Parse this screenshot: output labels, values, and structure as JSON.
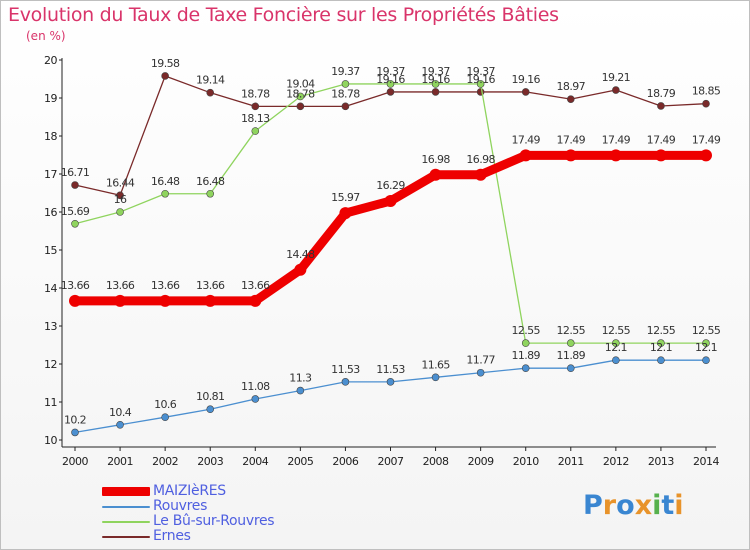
{
  "title": "Evolution du Taux de Taxe Foncière sur les Propriétés Bâties",
  "unit_label": "(en %)",
  "logo": {
    "letters": [
      "P",
      "r",
      "o",
      "x",
      "i",
      "t",
      "i"
    ],
    "colors": [
      "#3a86d1",
      "#e8932a",
      "#3a86d1",
      "#e8932a",
      "#57b14d",
      "#3a86d1",
      "#e8932a"
    ]
  },
  "chart_data": {
    "type": "line",
    "title": "Evolution du Taux de Taxe Foncière sur les Propriétés Bâties",
    "ylabel": "(en %)",
    "xlabel": "",
    "x": [
      "2000",
      "2001",
      "2002",
      "2003",
      "2004",
      "2005",
      "2006",
      "2007",
      "2008",
      "2009",
      "2010",
      "2011",
      "2012",
      "2013",
      "2014"
    ],
    "ylim": [
      10,
      20
    ],
    "yticks": [
      "10",
      "11",
      "12",
      "13",
      "14",
      "15",
      "16",
      "17",
      "18",
      "19",
      "20"
    ],
    "grid": false,
    "legend_position": "bottom-left",
    "series": [
      {
        "name": "MAIZIèRES",
        "color": "#ee0000",
        "emphasis": true,
        "values": [
          13.66,
          13.66,
          13.66,
          13.66,
          13.66,
          14.48,
          15.97,
          16.29,
          16.98,
          16.98,
          17.49,
          17.49,
          17.49,
          17.49,
          17.49
        ],
        "labels": [
          "13.66",
          "13.66",
          "13.66",
          "13.66",
          "13.66",
          "14.48",
          "15.97",
          "16.29",
          "16.98",
          "16.98",
          "17.49",
          "17.49",
          "17.49",
          "17.49",
          "17.49"
        ]
      },
      {
        "name": "Rouvres",
        "color": "#4b8fd0",
        "values": [
          10.2,
          10.4,
          10.6,
          10.81,
          11.08,
          11.3,
          11.53,
          11.53,
          11.65,
          11.77,
          11.89,
          11.89,
          12.1,
          12.1,
          12.1
        ],
        "labels": [
          "10.2",
          "10.4",
          "10.6",
          "10.81",
          "11.08",
          "11.3",
          "11.53",
          "11.53",
          "11.65",
          "11.77",
          "11.89",
          "11.89",
          "12.1",
          "12.1",
          "12.1"
        ]
      },
      {
        "name": "Le Bû-sur-Rouvres",
        "color": "#8fd45e",
        "values": [
          15.69,
          16,
          16.48,
          16.48,
          18.13,
          19.04,
          19.37,
          19.37,
          19.37,
          19.37,
          12.55,
          12.55,
          12.55,
          12.55,
          12.55
        ],
        "labels": [
          "15.69",
          "16",
          "16.48",
          "16.48",
          "18.13",
          "19.04",
          "19.37",
          "19.37",
          "19.37",
          "19.37",
          "12.55",
          "12.55",
          "12.55",
          "12.55",
          "12.55"
        ]
      },
      {
        "name": "Ernes",
        "color": "#7a2a2a",
        "values": [
          16.71,
          16.44,
          19.58,
          19.14,
          18.78,
          18.78,
          18.78,
          19.16,
          19.16,
          19.16,
          19.16,
          18.97,
          19.21,
          18.79,
          18.85
        ],
        "labels": [
          "16.71",
          "16.44",
          "19.58",
          "19.14",
          "18.78",
          "18.78",
          "18.78",
          "19.16",
          "19.16",
          "19.16",
          "19.16",
          "18.97",
          "19.21",
          "18.79",
          "18.85"
        ]
      }
    ]
  }
}
